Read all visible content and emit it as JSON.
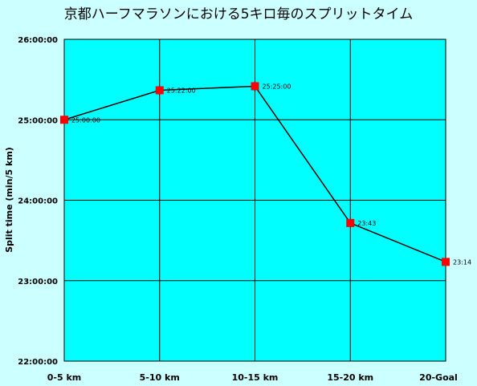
{
  "chart_data": {
    "type": "line",
    "title": "京都ハーフマラソンにおける5キロ毎のスプリットタイム",
    "xlabel": "",
    "ylabel": "Split time (min/5 km)",
    "categories": [
      "0-5 km",
      "5-10 km",
      "10-15 km",
      "15-20 km",
      "20-Goal"
    ],
    "values_seconds": [
      1500,
      1522,
      1525,
      1423,
      1394
    ],
    "data_labels": [
      "25:00:00",
      "25:22:00",
      "25:25:00",
      "23:43",
      "23:14"
    ],
    "y_ticks_seconds": [
      1320,
      1380,
      1440,
      1500,
      1560
    ],
    "y_tick_labels": [
      "22:00:00",
      "23:00:00",
      "24:00:00",
      "25:00:00",
      "26:00:00"
    ],
    "ylim_seconds": [
      1320,
      1560
    ],
    "grid": true,
    "colors": {
      "background": "#CCFFFF",
      "plot_area": "#00FFFF",
      "line": "#000000",
      "marker": "#FF0000",
      "grid": "#000000"
    }
  }
}
